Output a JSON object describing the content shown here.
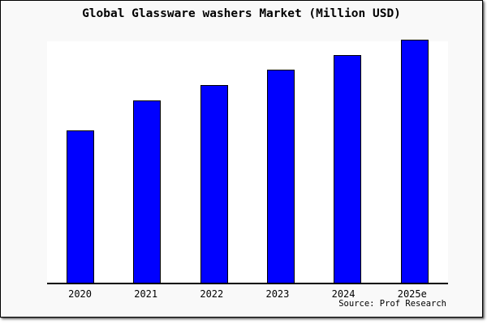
{
  "figure": {
    "background": "#f9f9f9",
    "frame_color": "#000000",
    "plot_background": "#ffffff"
  },
  "title": "Global Glassware washers Market (Million USD)",
  "source": "Source: Prof Research",
  "chart_data": {
    "type": "bar",
    "title": "Global Glassware washers Market (Million USD)",
    "categories": [
      "2020",
      "2021",
      "2022",
      "2023",
      "2024",
      "2025e"
    ],
    "values": [
      100,
      120,
      130,
      140,
      150,
      160
    ],
    "value_note": "y-axis has no ticks or labels; values are relative bar heights (2020 = 100)",
    "xlabel": "",
    "ylabel": "",
    "ylim": [
      0,
      160
    ],
    "grid": false,
    "legend": "none",
    "bar_color": "#0000ff",
    "bar_edge_color": "#000000",
    "axis_color": "#000000"
  }
}
